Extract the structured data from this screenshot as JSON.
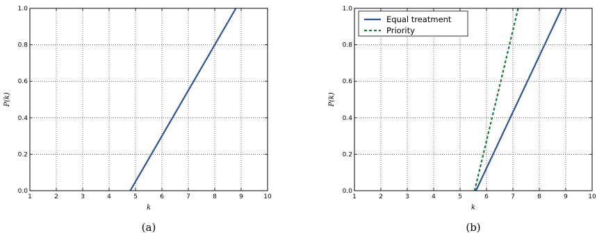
{
  "chart_data": [
    {
      "type": "line",
      "caption": "(a)",
      "xlabel": "k",
      "ylabel": "P(k)",
      "xlim": [
        1,
        10
      ],
      "ylim": [
        0.0,
        1.0
      ],
      "xticks": [
        "1",
        "2",
        "3",
        "4",
        "5",
        "6",
        "7",
        "8",
        "9",
        "10"
      ],
      "yticks": [
        "0.0",
        "0.2",
        "0.4",
        "0.6",
        "0.8",
        "1.0"
      ],
      "grid": true,
      "series": [
        {
          "x": [
            4.8,
            8.8
          ],
          "y": [
            0.0,
            1.0
          ],
          "color": "#2a52a0",
          "style": "solid"
        }
      ]
    },
    {
      "type": "line",
      "caption": "(b)",
      "xlabel": "k",
      "ylabel": "P(k)",
      "xlim": [
        1,
        10
      ],
      "ylim": [
        0.0,
        1.0
      ],
      "xticks": [
        "1",
        "2",
        "3",
        "4",
        "5",
        "6",
        "7",
        "8",
        "9",
        "10"
      ],
      "yticks": [
        "0.0",
        "0.2",
        "0.4",
        "0.6",
        "0.8",
        "1.0"
      ],
      "grid": true,
      "legend_position": "top-left",
      "series": [
        {
          "name": "Equal treatment",
          "x": [
            5.6,
            8.85
          ],
          "y": [
            0.0,
            1.0
          ],
          "color": "#2a52a0",
          "style": "solid"
        },
        {
          "name": "Priority",
          "x": [
            5.55,
            7.2
          ],
          "y": [
            0.0,
            1.0
          ],
          "color": "#127a3a",
          "style": "dashed"
        }
      ]
    }
  ]
}
